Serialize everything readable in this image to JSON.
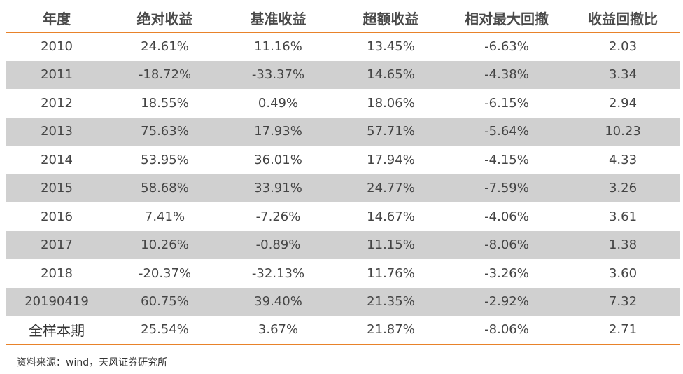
{
  "chart_data": {
    "type": "table",
    "columns": [
      "年度",
      "绝对收益",
      "基准收益",
      "超额收益",
      "相对最大回撤",
      "收益回撤比"
    ],
    "rows": [
      [
        "2010",
        "24.61%",
        "11.16%",
        "13.45%",
        "-6.63%",
        "2.03"
      ],
      [
        "2011",
        "-18.72%",
        "-33.37%",
        "14.65%",
        "-4.38%",
        "3.34"
      ],
      [
        "2012",
        "18.55%",
        "0.49%",
        "18.06%",
        "-6.15%",
        "2.94"
      ],
      [
        "2013",
        "75.63%",
        "17.93%",
        "57.71%",
        "-5.64%",
        "10.23"
      ],
      [
        "2014",
        "53.95%",
        "36.01%",
        "17.94%",
        "-4.15%",
        "4.33"
      ],
      [
        "2015",
        "58.68%",
        "33.91%",
        "24.77%",
        "-7.59%",
        "3.26"
      ],
      [
        "2016",
        "7.41%",
        "-7.26%",
        "14.67%",
        "-4.06%",
        "3.61"
      ],
      [
        "2017",
        "10.26%",
        "-0.89%",
        "11.15%",
        "-8.06%",
        "1.38"
      ],
      [
        "2018",
        "-20.37%",
        "-32.13%",
        "11.76%",
        "-3.26%",
        "3.60"
      ],
      [
        "20190419",
        "60.75%",
        "39.40%",
        "21.35%",
        "-2.92%",
        "7.32"
      ],
      [
        "全样本期",
        "25.54%",
        "3.67%",
        "21.87%",
        "-8.06%",
        "2.71"
      ]
    ],
    "shaded_rows": [
      1,
      3,
      5,
      7,
      9
    ]
  },
  "source": "资料来源：wind，天风证券研究所",
  "colors": {
    "accent": "#e8822a",
    "shade": "#d0d0d0",
    "text": "#444444"
  }
}
